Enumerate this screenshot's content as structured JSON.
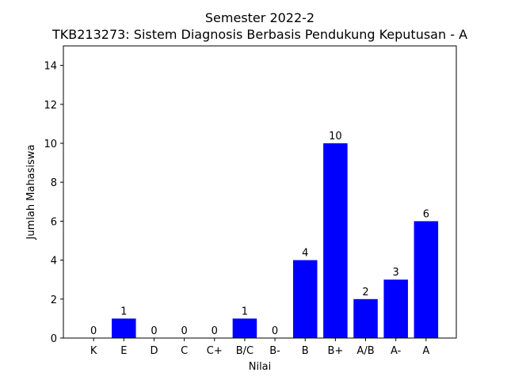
{
  "chart_data": {
    "type": "bar",
    "title": "Semester 2022-2",
    "subtitle": "TKB213273: Sistem Diagnosis Berbasis Pendukung Keputusan - A",
    "xlabel": "Nilai",
    "ylabel": "Jumlah Mahasiswa",
    "categories": [
      "K",
      "E",
      "D",
      "C",
      "C+",
      "B/C",
      "B-",
      "B",
      "B+",
      "A/B",
      "A-",
      "A"
    ],
    "values": [
      0,
      1,
      0,
      0,
      0,
      1,
      0,
      4,
      10,
      2,
      3,
      6
    ],
    "ylim": [
      0,
      15
    ],
    "yticks": [
      0,
      2,
      4,
      6,
      8,
      10,
      12,
      14
    ],
    "bar_color": "#0000ff",
    "grid": false,
    "show_value_labels": true
  }
}
